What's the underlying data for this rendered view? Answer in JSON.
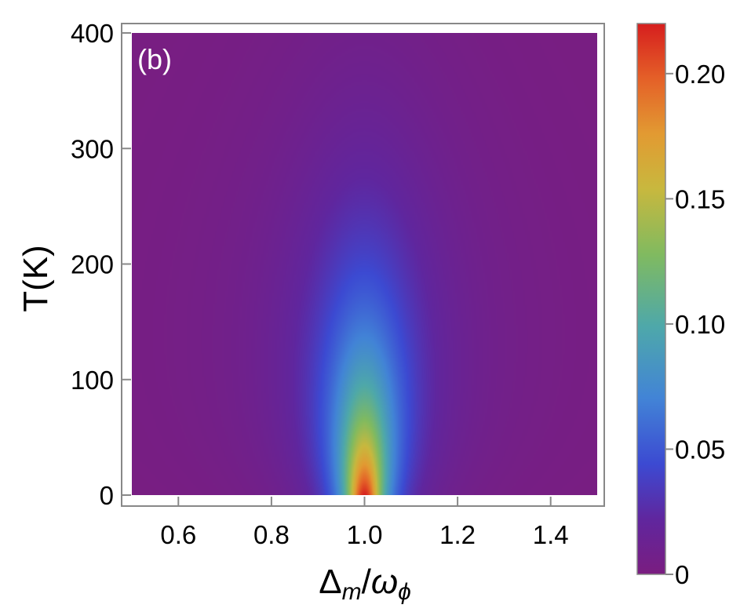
{
  "chart_data": {
    "type": "heatmap",
    "panel_label": "(b)",
    "xlabel": "Δm/ωφ",
    "xlabel_main": "Δ",
    "xlabel_sub_m": "m",
    "xlabel_slash": "/",
    "xlabel_omega": "ω",
    "xlabel_sub_phi": "ϕ",
    "ylabel": "T(K)",
    "xlim": [
      0.5,
      1.5
    ],
    "ylim": [
      0,
      400
    ],
    "x_ticks": [
      0.6,
      0.8,
      1.0,
      1.2,
      1.4
    ],
    "x_tick_labels": [
      "0.6",
      "0.8",
      "1.0",
      "1.2",
      "1.4"
    ],
    "y_ticks": [
      0,
      100,
      200,
      300,
      400
    ],
    "y_tick_labels": [
      "0",
      "100",
      "200",
      "300",
      "400"
    ],
    "colorbar": {
      "range": [
        0,
        0.22
      ],
      "ticks": [
        0,
        0.05,
        0.1,
        0.15,
        0.2
      ],
      "tick_labels": [
        "0",
        "0.05",
        "0.10",
        "0.15",
        "0.20"
      ]
    },
    "model": {
      "description": "peak centered at x=1.0, max ~0.22 at T=0, width grows and amplitude decays with T, vanishing near T≈300 K",
      "center": 1.0,
      "peak_value": 0.22,
      "vanish_temperature": 300
    }
  }
}
